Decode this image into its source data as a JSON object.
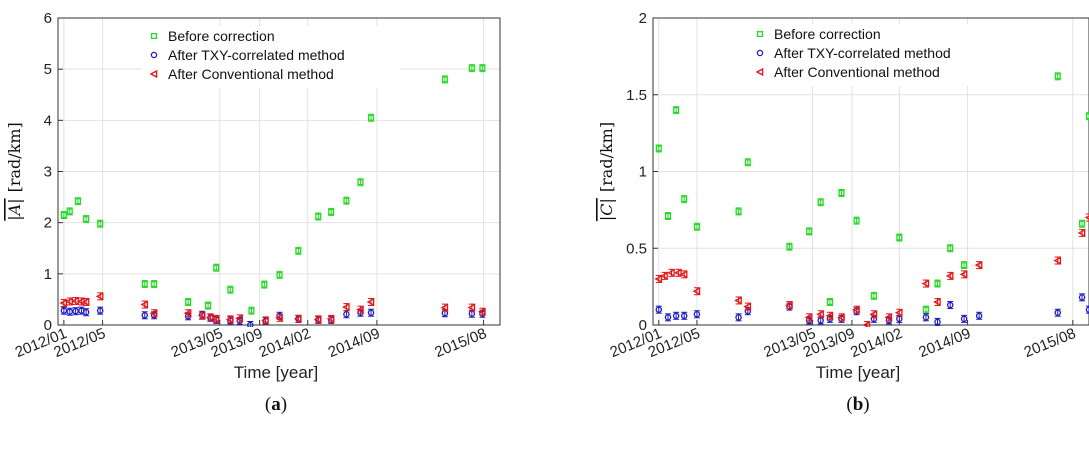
{
  "colors": {
    "before": "#22dd22",
    "txy": "#1a1acc",
    "conventional": "#ee1111",
    "grid": "#e2e2e2",
    "axis": "#333333"
  },
  "chart_data": [
    {
      "type": "scatter",
      "caption": "(a)",
      "caption_letter": "a",
      "xlabel": "Time [year]",
      "ylabel_main": "|A|",
      "ylabel_unit": "[rad/km]",
      "xlim": [
        2011.95,
        2015.72
      ],
      "ylim": [
        0,
        6
      ],
      "yticks": [
        "0",
        "1",
        "2",
        "3",
        "4",
        "5",
        "6"
      ],
      "xticks": [
        {
          "label": "2012/01",
          "value": 2012.0
        },
        {
          "label": "2012/05",
          "value": 2012.33
        },
        {
          "label": "2013/05",
          "value": 2013.33
        },
        {
          "label": "2013/09",
          "value": 2013.67
        },
        {
          "label": "2014/02",
          "value": 2014.08
        },
        {
          "label": "2014/09",
          "value": 2014.67
        },
        {
          "label": "2015/08",
          "value": 2015.58
        }
      ],
      "legend_position": "top-center",
      "series": [
        {
          "name": "Before correction",
          "marker": "square",
          "color_key": "before",
          "x": [
            2012.0,
            2012.05,
            2012.12,
            2012.19,
            2012.31,
            2012.69,
            2012.77,
            2013.06,
            2013.23,
            2013.3,
            2013.42,
            2013.6,
            2013.71,
            2013.84,
            2014.0,
            2014.17,
            2014.28,
            2014.41,
            2014.53,
            2014.62,
            2015.25,
            2015.48,
            2015.57
          ],
          "y": [
            2.15,
            2.22,
            2.42,
            2.07,
            1.98,
            0.8,
            0.8,
            0.45,
            0.38,
            1.12,
            0.69,
            0.28,
            0.79,
            0.98,
            1.45,
            2.12,
            2.21,
            2.43,
            2.79,
            4.05,
            4.8,
            5.02,
            5.02
          ]
        },
        {
          "name": "After TXY-correlated method",
          "marker": "circle",
          "color_key": "txy",
          "x": [
            2012.0,
            2012.05,
            2012.1,
            2012.15,
            2012.19,
            2012.31,
            2012.69,
            2012.77,
            2013.06,
            2013.18,
            2013.25,
            2013.3,
            2013.42,
            2013.5,
            2013.59,
            2013.72,
            2013.84,
            2014.0,
            2014.17,
            2014.28,
            2014.41,
            2014.53,
            2014.62,
            2015.25,
            2015.48,
            2015.57
          ],
          "y": [
            0.28,
            0.26,
            0.27,
            0.28,
            0.25,
            0.28,
            0.19,
            0.19,
            0.17,
            0.2,
            0.14,
            0.1,
            0.09,
            0.08,
            0.0,
            0.08,
            0.18,
            0.12,
            0.1,
            0.1,
            0.21,
            0.24,
            0.24,
            0.23,
            0.22,
            0.22
          ]
        },
        {
          "name": "After Conventional method",
          "marker": "triangle-left",
          "color_key": "conventional",
          "x": [
            2012.0,
            2012.05,
            2012.1,
            2012.15,
            2012.19,
            2012.31,
            2012.69,
            2012.77,
            2013.06,
            2013.18,
            2013.25,
            2013.3,
            2013.42,
            2013.5,
            2013.72,
            2013.84,
            2014.0,
            2014.17,
            2014.28,
            2014.41,
            2014.53,
            2014.62,
            2015.25,
            2015.48,
            2015.57
          ],
          "y": [
            0.43,
            0.46,
            0.47,
            0.46,
            0.45,
            0.56,
            0.4,
            0.23,
            0.23,
            0.18,
            0.15,
            0.12,
            0.11,
            0.13,
            0.09,
            0.14,
            0.12,
            0.11,
            0.12,
            0.35,
            0.3,
            0.45,
            0.34,
            0.34,
            0.26
          ]
        }
      ]
    },
    {
      "type": "scatter",
      "caption": "(b)",
      "caption_letter": "b",
      "xlabel": "Time [year]",
      "ylabel_main": "|C|",
      "ylabel_unit": "[rad/km]",
      "xlim": [
        2011.95,
        2015.72
      ],
      "ylim": [
        0,
        2
      ],
      "yticks": [
        "0",
        "0.5",
        "1",
        "1.5",
        "2"
      ],
      "xticks": [
        {
          "label": "2012/01",
          "value": 2012.0
        },
        {
          "label": "2012/05",
          "value": 2012.33
        },
        {
          "label": "2013/05",
          "value": 2013.33
        },
        {
          "label": "2013/09",
          "value": 2013.67
        },
        {
          "label": "2014/02",
          "value": 2014.08
        },
        {
          "label": "2014/09",
          "value": 2014.67
        },
        {
          "label": "2015/08",
          "value": 2015.58
        }
      ],
      "legend_position": "top-center",
      "series": [
        {
          "name": "Before correction",
          "marker": "square",
          "color_key": "before",
          "x": [
            2012.0,
            2012.08,
            2012.15,
            2012.22,
            2012.33,
            2012.69,
            2012.77,
            2013.13,
            2013.3,
            2013.4,
            2013.48,
            2013.58,
            2013.71,
            2013.86,
            2014.08,
            2014.31,
            2014.41,
            2014.52,
            2014.64,
            2015.45,
            2015.66,
            2015.72
          ],
          "y": [
            1.15,
            0.71,
            1.4,
            0.82,
            0.64,
            0.74,
            1.06,
            0.51,
            0.61,
            0.8,
            0.15,
            0.86,
            0.68,
            0.19,
            0.57,
            0.1,
            0.27,
            0.5,
            0.39,
            1.62,
            0.66,
            1.36
          ]
        },
        {
          "name": "After TXY-correlated method",
          "marker": "circle",
          "color_key": "txy",
          "x": [
            2012.0,
            2012.08,
            2012.15,
            2012.22,
            2012.33,
            2012.69,
            2012.77,
            2013.13,
            2013.3,
            2013.4,
            2013.48,
            2013.58,
            2013.71,
            2013.86,
            2013.99,
            2014.08,
            2014.31,
            2014.41,
            2014.52,
            2014.64,
            2014.77,
            2015.45,
            2015.66,
            2015.72
          ],
          "y": [
            0.1,
            0.05,
            0.06,
            0.06,
            0.07,
            0.05,
            0.09,
            0.12,
            0.03,
            0.03,
            0.04,
            0.04,
            0.09,
            0.04,
            0.03,
            0.04,
            0.05,
            0.02,
            0.13,
            0.04,
            0.06,
            0.08,
            0.18,
            0.1
          ]
        },
        {
          "name": "After Conventional method",
          "marker": "triangle-left",
          "color_key": "conventional",
          "x": [
            2012.0,
            2012.05,
            2012.11,
            2012.17,
            2012.22,
            2012.33,
            2012.69,
            2012.77,
            2013.13,
            2013.3,
            2013.4,
            2013.48,
            2013.58,
            2013.71,
            2013.8,
            2013.86,
            2013.99,
            2014.08,
            2014.31,
            2014.41,
            2014.52,
            2014.64,
            2014.77,
            2015.45,
            2015.66,
            2015.72
          ],
          "y": [
            0.3,
            0.32,
            0.34,
            0.34,
            0.33,
            0.22,
            0.16,
            0.12,
            0.13,
            0.05,
            0.07,
            0.06,
            0.05,
            0.1,
            0.0,
            0.07,
            0.05,
            0.08,
            0.27,
            0.15,
            0.32,
            0.33,
            0.39,
            0.42,
            0.6,
            0.7
          ]
        }
      ]
    }
  ]
}
